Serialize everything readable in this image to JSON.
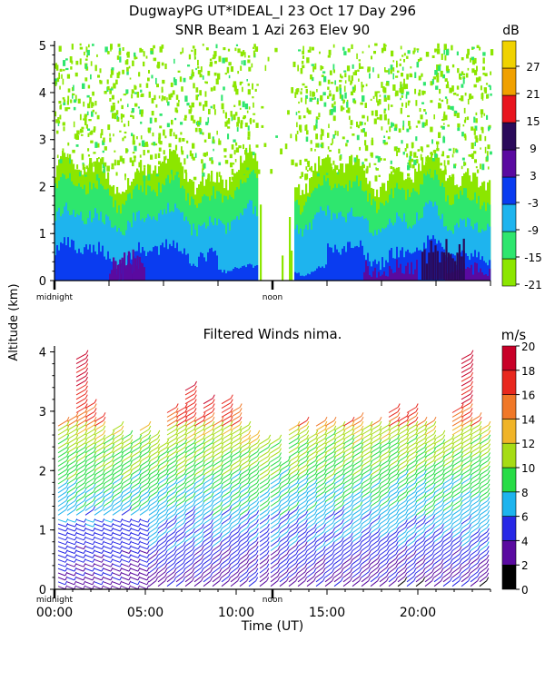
{
  "header": {
    "line1": "DugwayPG UT*IDEAL_I  23 Oct 17 Day 296",
    "line2": "SNR Beam 1 Azi 263 Elev 90"
  },
  "shared_ylabel": "Altitude (km)",
  "colors": {
    "snr_scale": [
      "#8ce600",
      "#2ee66e",
      "#1eb4ee",
      "#0a3cf0",
      "#5a0aa0",
      "#2a0a5a",
      "#e8141e",
      "#f0a000",
      "#f0d200"
    ],
    "wind_scale": [
      "#000000",
      "#5a0aa0",
      "#2828e6",
      "#1eb4ee",
      "#28dc46",
      "#a6dc14",
      "#f0b428",
      "#f07828",
      "#e8281e",
      "#c80028"
    ]
  },
  "chart_data": [
    {
      "type": "heatmap",
      "title": "SNR Beam 1 Azi 263 Elev 90",
      "ylabel": "Altitude (km)",
      "ylim": [
        0,
        5.1
      ],
      "yticks": [
        0,
        1,
        2,
        3,
        4,
        5
      ],
      "xlim": [
        0,
        24
      ],
      "x_marks": [
        {
          "hour": 0,
          "label": "midnight"
        },
        {
          "hour": 12,
          "label": "noon"
        }
      ],
      "colorbar": {
        "unit": "dB",
        "ticks": [
          -21,
          -15,
          -9,
          -3,
          3,
          9,
          15,
          21,
          27
        ]
      },
      "layers": [
        {
          "level_db": -21,
          "top_km": 2.3
        },
        {
          "level_db": -15,
          "top_km": 1.9
        },
        {
          "level_db": -9,
          "top_km": 1.3
        },
        {
          "level_db": -3,
          "top_km": 0.6
        },
        {
          "level_db": 3,
          "top_km": 0.3
        }
      ],
      "gap_hours": [
        [
          11.2,
          13.2
        ]
      ]
    },
    {
      "type": "scatter",
      "title": "Filtered Winds nima.",
      "xlabel": "Time (UT)",
      "ylabel": "Altitude (km)",
      "xlim": [
        0,
        24
      ],
      "ylim": [
        0,
        4.1
      ],
      "yticks": [
        0,
        1,
        2,
        3,
        4
      ],
      "xticks": [
        "00:00",
        "05:00",
        "10:00",
        "15:00",
        "20:00"
      ],
      "xtick_hours": [
        0,
        5,
        10,
        15,
        20
      ],
      "x_marks": [
        {
          "hour": 0,
          "label": "midnight"
        },
        {
          "hour": 12,
          "label": "noon"
        }
      ],
      "colorbar": {
        "unit": "m/s",
        "ticks": [
          0,
          2,
          4,
          6,
          8,
          10,
          12,
          14,
          16,
          18,
          20
        ]
      },
      "barb_columns": [
        {
          "t": 0.3,
          "tops": 2.8
        },
        {
          "t": 0.8,
          "tops": 2.9
        },
        {
          "t": 1.3,
          "tops": 3.9
        },
        {
          "t": 1.8,
          "tops": 3.1
        },
        {
          "t": 2.3,
          "tops": 2.9
        },
        {
          "t": 2.8,
          "tops": 2.6
        },
        {
          "t": 3.3,
          "tops": 2.7
        },
        {
          "t": 3.8,
          "tops": 2.6
        },
        {
          "t": 4.3,
          "tops": 2.5
        },
        {
          "t": 4.8,
          "tops": 2.7
        },
        {
          "t": 5.3,
          "tops": 2.6
        },
        {
          "t": 5.8,
          "tops": 2.4
        },
        {
          "t": 6.3,
          "tops": 3.0
        },
        {
          "t": 6.8,
          "tops": 3.0
        },
        {
          "t": 7.3,
          "tops": 3.4
        },
        {
          "t": 7.8,
          "tops": 2.9
        },
        {
          "t": 8.3,
          "tops": 3.2
        },
        {
          "t": 8.8,
          "tops": 2.8
        },
        {
          "t": 9.3,
          "tops": 3.2
        },
        {
          "t": 9.8,
          "tops": 3.0
        },
        {
          "t": 10.3,
          "tops": 2.7
        },
        {
          "t": 10.8,
          "tops": 2.6
        },
        {
          "t": 11.4,
          "tops": 2.5
        },
        {
          "t": 12.0,
          "tops": 2.5
        },
        {
          "t": 12.5,
          "tops": 2.1
        },
        {
          "t": 13.0,
          "tops": 2.7
        },
        {
          "t": 13.5,
          "tops": 2.8
        },
        {
          "t": 14.0,
          "tops": 2.6
        },
        {
          "t": 14.5,
          "tops": 2.8
        },
        {
          "t": 15.0,
          "tops": 2.8
        },
        {
          "t": 15.5,
          "tops": 2.7
        },
        {
          "t": 16.0,
          "tops": 2.8
        },
        {
          "t": 16.5,
          "tops": 2.9
        },
        {
          "t": 17.0,
          "tops": 2.7
        },
        {
          "t": 17.5,
          "tops": 2.8
        },
        {
          "t": 18.0,
          "tops": 2.7
        },
        {
          "t": 18.5,
          "tops": 3.0
        },
        {
          "t": 19.0,
          "tops": 2.9
        },
        {
          "t": 19.5,
          "tops": 3.0
        },
        {
          "t": 20.0,
          "tops": 2.8
        },
        {
          "t": 20.5,
          "tops": 2.8
        },
        {
          "t": 21.0,
          "tops": 2.6
        },
        {
          "t": 21.5,
          "tops": 2.5
        },
        {
          "t": 22.0,
          "tops": 3.0
        },
        {
          "t": 22.5,
          "tops": 3.9
        },
        {
          "t": 23.0,
          "tops": 2.9
        },
        {
          "t": 23.5,
          "tops": 2.7
        }
      ]
    }
  ]
}
